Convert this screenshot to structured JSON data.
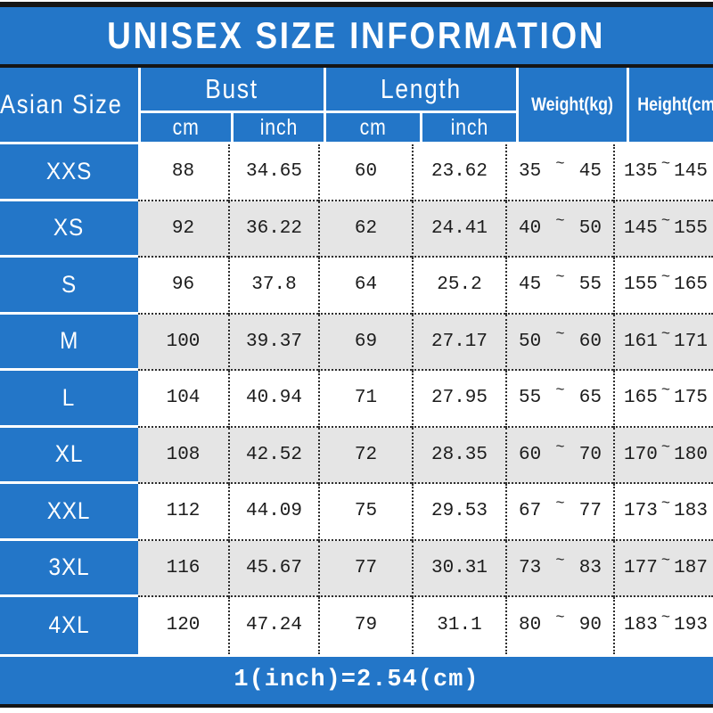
{
  "title": "UNISEX SIZE INFORMATION",
  "symbols": {
    "tilde": "~"
  },
  "colors": {
    "accent_blue": "#2376C8",
    "alt_row_gray": "#E5E5E5",
    "text_dark": "#1c1c1c",
    "header_text": "#ffffff"
  },
  "table": {
    "headers": {
      "asian_size": "Asian Size",
      "bust": "Bust",
      "length": "Length",
      "weight": "Weight(kg)",
      "height": "Height(cm)",
      "cm": "cm",
      "inch": "inch"
    },
    "rows": [
      {
        "size": "XXS",
        "bust_cm": "88",
        "bust_inch": "34.65",
        "length_cm": "60",
        "length_inch": "23.62",
        "weight_min": "35",
        "weight_max": "45",
        "height_min": "135",
        "height_max": "145"
      },
      {
        "size": "XS",
        "bust_cm": "92",
        "bust_inch": "36.22",
        "length_cm": "62",
        "length_inch": "24.41",
        "weight_min": "40",
        "weight_max": "50",
        "height_min": "145",
        "height_max": "155"
      },
      {
        "size": "S",
        "bust_cm": "96",
        "bust_inch": "37.8",
        "length_cm": "64",
        "length_inch": "25.2",
        "weight_min": "45",
        "weight_max": "55",
        "height_min": "155",
        "height_max": "165"
      },
      {
        "size": "M",
        "bust_cm": "100",
        "bust_inch": "39.37",
        "length_cm": "69",
        "length_inch": "27.17",
        "weight_min": "50",
        "weight_max": "60",
        "height_min": "161",
        "height_max": "171"
      },
      {
        "size": "L",
        "bust_cm": "104",
        "bust_inch": "40.94",
        "length_cm": "71",
        "length_inch": "27.95",
        "weight_min": "55",
        "weight_max": "65",
        "height_min": "165",
        "height_max": "175"
      },
      {
        "size": "XL",
        "bust_cm": "108",
        "bust_inch": "42.52",
        "length_cm": "72",
        "length_inch": "28.35",
        "weight_min": "60",
        "weight_max": "70",
        "height_min": "170",
        "height_max": "180"
      },
      {
        "size": "XXL",
        "bust_cm": "112",
        "bust_inch": "44.09",
        "length_cm": "75",
        "length_inch": "29.53",
        "weight_min": "67",
        "weight_max": "77",
        "height_min": "173",
        "height_max": "183"
      },
      {
        "size": "3XL",
        "bust_cm": "116",
        "bust_inch": "45.67",
        "length_cm": "77",
        "length_inch": "30.31",
        "weight_min": "73",
        "weight_max": "83",
        "height_min": "177",
        "height_max": "187"
      },
      {
        "size": "4XL",
        "bust_cm": "120",
        "bust_inch": "47.24",
        "length_cm": "79",
        "length_inch": "31.1",
        "weight_min": "80",
        "weight_max": "90",
        "height_min": "183",
        "height_max": "193"
      }
    ]
  },
  "footer": {
    "note": "1(inch)=2.54(cm)"
  },
  "chart_data": {
    "type": "table",
    "title": "UNISEX SIZE INFORMATION",
    "columns": [
      "Asian Size",
      "Bust cm",
      "Bust inch",
      "Length cm",
      "Length inch",
      "Weight(kg)",
      "Height(cm)"
    ],
    "rows": [
      [
        "XXS",
        88,
        34.65,
        60,
        23.62,
        "35~45",
        "135~145"
      ],
      [
        "XS",
        92,
        36.22,
        62,
        24.41,
        "40~50",
        "145~155"
      ],
      [
        "S",
        96,
        37.8,
        64,
        25.2,
        "45~55",
        "155~165"
      ],
      [
        "M",
        100,
        39.37,
        69,
        27.17,
        "50~60",
        "161~171"
      ],
      [
        "L",
        104,
        40.94,
        71,
        27.95,
        "55~65",
        "165~175"
      ],
      [
        "XL",
        108,
        42.52,
        72,
        28.35,
        "60~70",
        "170~180"
      ],
      [
        "XXL",
        112,
        44.09,
        75,
        29.53,
        "67~77",
        "173~183"
      ],
      [
        "3XL",
        116,
        45.67,
        77,
        30.31,
        "73~83",
        "177~187"
      ],
      [
        "4XL",
        120,
        47.24,
        79,
        31.1,
        "80~90",
        "183~193"
      ]
    ],
    "footnote": "1(inch)=2.54(cm)"
  }
}
